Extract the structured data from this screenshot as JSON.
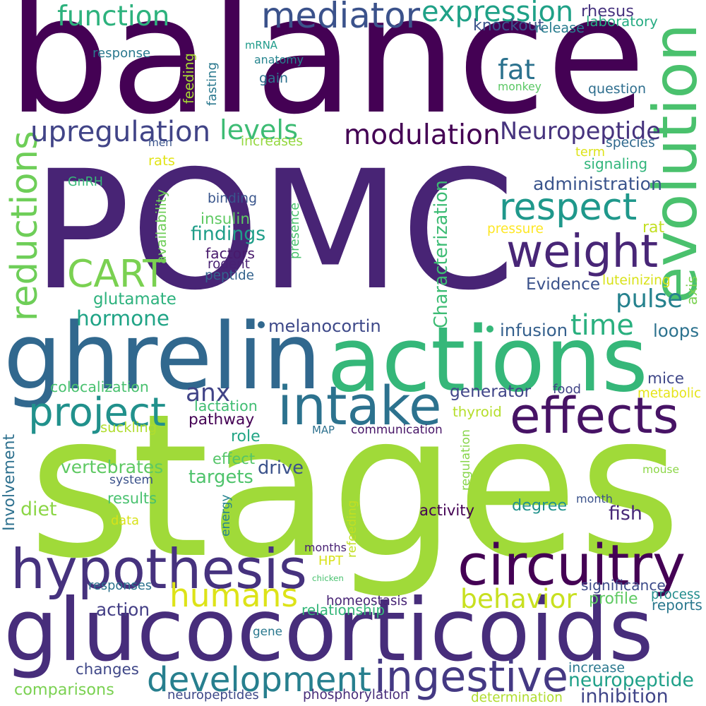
{
  "words": [
    {
      "text": "balance",
      "color": "#440154"
    },
    {
      "text": "POMC",
      "color": "#482475"
    },
    {
      "text": "stages",
      "color": "#a0da39"
    },
    {
      "text": "glucocorticoids",
      "color": "#472d7b"
    },
    {
      "text": "ghrelin",
      "color": "#31688e"
    },
    {
      "text": "actions",
      "color": "#35b779"
    },
    {
      "text": "hypothesis",
      "color": "#46327e"
    },
    {
      "text": "circuitry",
      "color": "#440154"
    },
    {
      "text": "intake",
      "color": "#2c728e"
    },
    {
      "text": "evolution",
      "color": "#4ac16d"
    },
    {
      "text": "weight",
      "color": "#482677"
    },
    {
      "text": "effects",
      "color": "#471365"
    },
    {
      "text": "CART",
      "color": "#7ad151"
    },
    {
      "text": "ingestive",
      "color": "#443983"
    },
    {
      "text": "development",
      "color": "#277f8e"
    },
    {
      "text": "humans",
      "color": "#dde318"
    },
    {
      "text": "project",
      "color": "#21918c"
    },
    {
      "text": "respect",
      "color": "#1f988b"
    },
    {
      "text": "modulation",
      "color": "#440154"
    },
    {
      "text": "mediator",
      "color": "#3b528b"
    },
    {
      "text": "expression",
      "color": "#1fa187"
    },
    {
      "text": "function",
      "color": "#2db27d"
    },
    {
      "text": "reductions",
      "color": "#6ece58"
    },
    {
      "text": "upregulation",
      "color": "#414487"
    },
    {
      "text": "Neuropeptide",
      "color": "#46337e"
    },
    {
      "text": "behavior",
      "color": "#c8e020"
    },
    {
      "text": "hormone",
      "color": "#20a486"
    },
    {
      "text": "time",
      "color": "#2ab07f"
    },
    {
      "text": "pulse",
      "color": "#26828e"
    },
    {
      "text": "levels",
      "color": "#3dbc74"
    },
    {
      "text": "fat",
      "color": "#2c728e"
    },
    {
      "text": "anx",
      "color": "#414487"
    },
    {
      "text": "neuropeptide",
      "color": "#1fa088"
    },
    {
      "text": "rhesus",
      "color": "#46327e"
    },
    {
      "text": "knockout",
      "color": "#3b528b"
    },
    {
      "text": "release",
      "color": "#287c8e"
    },
    {
      "text": "laboratory",
      "color": "#25ab82"
    },
    {
      "text": "response",
      "color": "#2a788e"
    },
    {
      "text": "mRNA",
      "color": "#1e9b8a"
    },
    {
      "text": "anatomy",
      "color": "#25848e"
    },
    {
      "text": "fasting",
      "color": "#2a788e"
    },
    {
      "text": "feeding",
      "color": "#a8db34"
    },
    {
      "text": "gain",
      "color": "#2d718e"
    },
    {
      "text": "monkey",
      "color": "#5ac864"
    },
    {
      "text": "question",
      "color": "#2e6e8e"
    },
    {
      "text": "men",
      "color": "#3a548c"
    },
    {
      "text": "increases",
      "color": "#95d840"
    },
    {
      "text": "species",
      "color": "#30698e"
    },
    {
      "text": "term",
      "color": "#dde318"
    },
    {
      "text": "signaling",
      "color": "#31b57b"
    },
    {
      "text": "rats",
      "color": "#e2e418"
    },
    {
      "text": "GnRH",
      "color": "#37b878"
    },
    {
      "text": "administration",
      "color": "#3a548c"
    },
    {
      "text": "Characterization",
      "color": "#3dbc74"
    },
    {
      "text": "binding",
      "color": "#39558c"
    },
    {
      "text": "availability",
      "color": "#6ece58"
    },
    {
      "text": "insulin",
      "color": "#5ec962"
    },
    {
      "text": "presence",
      "color": "#4ac16d"
    },
    {
      "text": "findings",
      "color": "#1f9e89"
    },
    {
      "text": "pressure",
      "color": "#fde725"
    },
    {
      "text": "rat",
      "color": "#c2df23"
    },
    {
      "text": "factors",
      "color": "#481a6c"
    },
    {
      "text": "rodent",
      "color": "#482173"
    },
    {
      "text": "peptide",
      "color": "#33638d"
    },
    {
      "text": "luteinizing",
      "color": "#d8e219"
    },
    {
      "text": "axis",
      "color": "#7ad151"
    },
    {
      "text": "glutamate",
      "color": "#2db27d"
    },
    {
      "text": "Evidence",
      "color": "#3b528b"
    },
    {
      "text": "melanocortin",
      "color": "#3e4989"
    },
    {
      "text": "infusion",
      "color": "#35608d"
    },
    {
      "text": "loops",
      "color": "#2c728e"
    },
    {
      "text": "mice",
      "color": "#3f4788"
    },
    {
      "text": "colocalization",
      "color": "#48c16e"
    },
    {
      "text": "food",
      "color": "#414487"
    },
    {
      "text": "generator",
      "color": "#404588"
    },
    {
      "text": "metabolic",
      "color": "#e5e419"
    },
    {
      "text": "lactation",
      "color": "#40bd72"
    },
    {
      "text": "thyroid",
      "color": "#b5de2b"
    },
    {
      "text": "suckling",
      "color": "#b0dd2f"
    },
    {
      "text": "pathway",
      "color": "#440154"
    },
    {
      "text": "MAP",
      "color": "#2d718e"
    },
    {
      "text": "communication",
      "color": "#481668"
    },
    {
      "text": "Involvement",
      "color": "#2d708e"
    },
    {
      "text": "role",
      "color": "#21a585"
    },
    {
      "text": "regulation",
      "color": "#86d549"
    },
    {
      "text": "effect",
      "color": "#54c568"
    },
    {
      "text": "vertebrates",
      "color": "#5ec962"
    },
    {
      "text": "drive",
      "color": "#3b528b"
    },
    {
      "text": "targets",
      "color": "#4ec36b"
    },
    {
      "text": "system",
      "color": "#3b528b"
    },
    {
      "text": "mouse",
      "color": "#8bd646"
    },
    {
      "text": "results",
      "color": "#48c16e"
    },
    {
      "text": "diet",
      "color": "#8bd646"
    },
    {
      "text": "energy",
      "color": "#25838e"
    },
    {
      "text": "refeeding",
      "color": "#c2df23"
    },
    {
      "text": "data",
      "color": "#d8e219"
    },
    {
      "text": "activity",
      "color": "#440154"
    },
    {
      "text": "degree",
      "color": "#20928c"
    },
    {
      "text": "month",
      "color": "#3b528b"
    },
    {
      "text": "fish",
      "color": "#482878"
    },
    {
      "text": "HPT",
      "color": "#d8e219"
    },
    {
      "text": "months",
      "color": "#482173"
    },
    {
      "text": "chicken",
      "color": "#48c16e"
    },
    {
      "text": "responses",
      "color": "#2c728e"
    },
    {
      "text": "homeostasis",
      "color": "#482475"
    },
    {
      "text": "significance",
      "color": "#3e4c8a"
    },
    {
      "text": "process",
      "color": "#228d8d"
    },
    {
      "text": "reports",
      "color": "#2a788e"
    },
    {
      "text": "profile",
      "color": "#5ec962"
    },
    {
      "text": "action",
      "color": "#433e85"
    },
    {
      "text": "relationship",
      "color": "#34b679"
    },
    {
      "text": "gene",
      "color": "#2a788e"
    },
    {
      "text": "changes",
      "color": "#3f4788"
    },
    {
      "text": "increase",
      "color": "#2a788e"
    },
    {
      "text": "comparisons",
      "color": "#7ad151"
    },
    {
      "text": "neuropeptides",
      "color": "#3e4989"
    },
    {
      "text": "phosphorylation",
      "color": "#472c7a"
    },
    {
      "text": "determination",
      "color": "#b0dd2f"
    },
    {
      "text": "inhibition",
      "color": "#404588"
    }
  ],
  "dots": [
    {
      "color": "#31688e"
    },
    {
      "color": "#35b779"
    }
  ]
}
